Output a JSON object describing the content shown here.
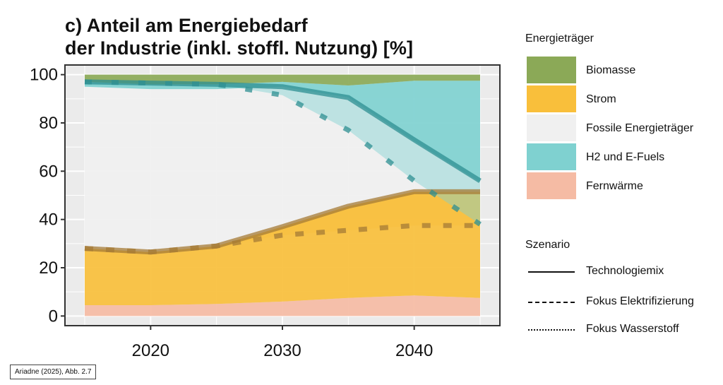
{
  "title_line1": "c) Anteil am Energiebedarf",
  "title_line2": "der Industrie (inkl. stoffl. Nutzung) [%]",
  "source": "Ariadne (2025), Abb. 2.7",
  "colors": {
    "biomasse": "#8ba957",
    "strom": "#f9bf3b",
    "fossile": "#f0f0f0",
    "h2": "#7fd1d0",
    "fernwaerme": "#f5bba4",
    "strom_line": "#a57b36",
    "h2_line": "#2d8f92"
  },
  "legend": {
    "fill_title": "Energieträger",
    "fill_items": [
      {
        "label": "Biomasse",
        "color": "#8ba957"
      },
      {
        "label": "Strom",
        "color": "#f9bf3b"
      },
      {
        "label": "Fossile Energieträger",
        "color": "#f0f0f0"
      },
      {
        "label": "H2 und E-Fuels",
        "color": "#7fd1d0"
      },
      {
        "label": "Fernwärme",
        "color": "#f5bba4"
      }
    ],
    "scenario_title": "Szenario",
    "scenario_items": [
      {
        "label": "Technologiemix",
        "style": "solid"
      },
      {
        "label": "Fokus Elektrifizierung",
        "style": "dashed"
      },
      {
        "label": "Fokus Wasserstoff",
        "style": "dotted"
      }
    ]
  },
  "chart_data": {
    "type": "area",
    "x": [
      2015,
      2020,
      2025,
      2030,
      2035,
      2040,
      2045
    ],
    "xlim": [
      2013.5,
      2046.5
    ],
    "ylim": [
      -4,
      104
    ],
    "xticks": [
      2020,
      2030,
      2040
    ],
    "yticks": [
      0,
      20,
      40,
      60,
      80,
      100
    ],
    "grid": true,
    "legend_position": "right",
    "stacked_series": [
      {
        "name": "Fernwärme",
        "values": [
          4.5,
          4.5,
          5,
          6,
          7.5,
          8.5,
          7.5
        ]
      },
      {
        "name": "Strom",
        "values": [
          23.5,
          22,
          24,
          31,
          38,
          43,
          44
        ]
      },
      {
        "name": "Fossile Energieträger",
        "values": [
          67,
          67.5,
          65,
          58,
          45,
          21,
          4
        ]
      },
      {
        "name": "H2 und E-Fuels",
        "values": [
          2,
          2,
          2,
          2,
          5,
          25,
          42
        ]
      },
      {
        "name": "Biomasse",
        "values": [
          3,
          4,
          4,
          3,
          4.5,
          2.5,
          2.5
        ]
      }
    ],
    "scenario_lines": [
      {
        "name": "Technologiemix",
        "variable": "Strom",
        "style": "solid",
        "values": [
          28,
          26.5,
          29,
          37,
          45.5,
          51.5,
          51.5
        ]
      },
      {
        "name": "Technologiemix",
        "variable": "H2 und E-Fuels",
        "style": "solid",
        "values": [
          97,
          96.5,
          96,
          95,
          90.5,
          73,
          56
        ]
      },
      {
        "name": "Fokus Elektrifizierung",
        "variable": "Strom",
        "style": "dashed",
        "values": [
          28,
          26.5,
          29,
          33.5,
          35.5,
          37.5,
          37.5
        ]
      },
      {
        "name": "Fokus Wasserstoff",
        "variable": "H2 und E-Fuels",
        "style": "dotted",
        "values": [
          97,
          96.5,
          96,
          91.5,
          77,
          56,
          38
        ]
      }
    ],
    "scenario_bands": [
      {
        "variable": "Strom",
        "color": "#f9bf3b",
        "lower": [
          28,
          26.5,
          29,
          33.5,
          35.5,
          37.5,
          37.5
        ],
        "upper": [
          28,
          26.5,
          29,
          37,
          45.5,
          51.5,
          51.5
        ]
      },
      {
        "variable": "H2 und E-Fuels",
        "color": "#7fd1d0",
        "lower": [
          97,
          96.5,
          96,
          91.5,
          77,
          56,
          38
        ],
        "upper": [
          97,
          96.5,
          96,
          95,
          90.5,
          73,
          56
        ]
      }
    ]
  }
}
